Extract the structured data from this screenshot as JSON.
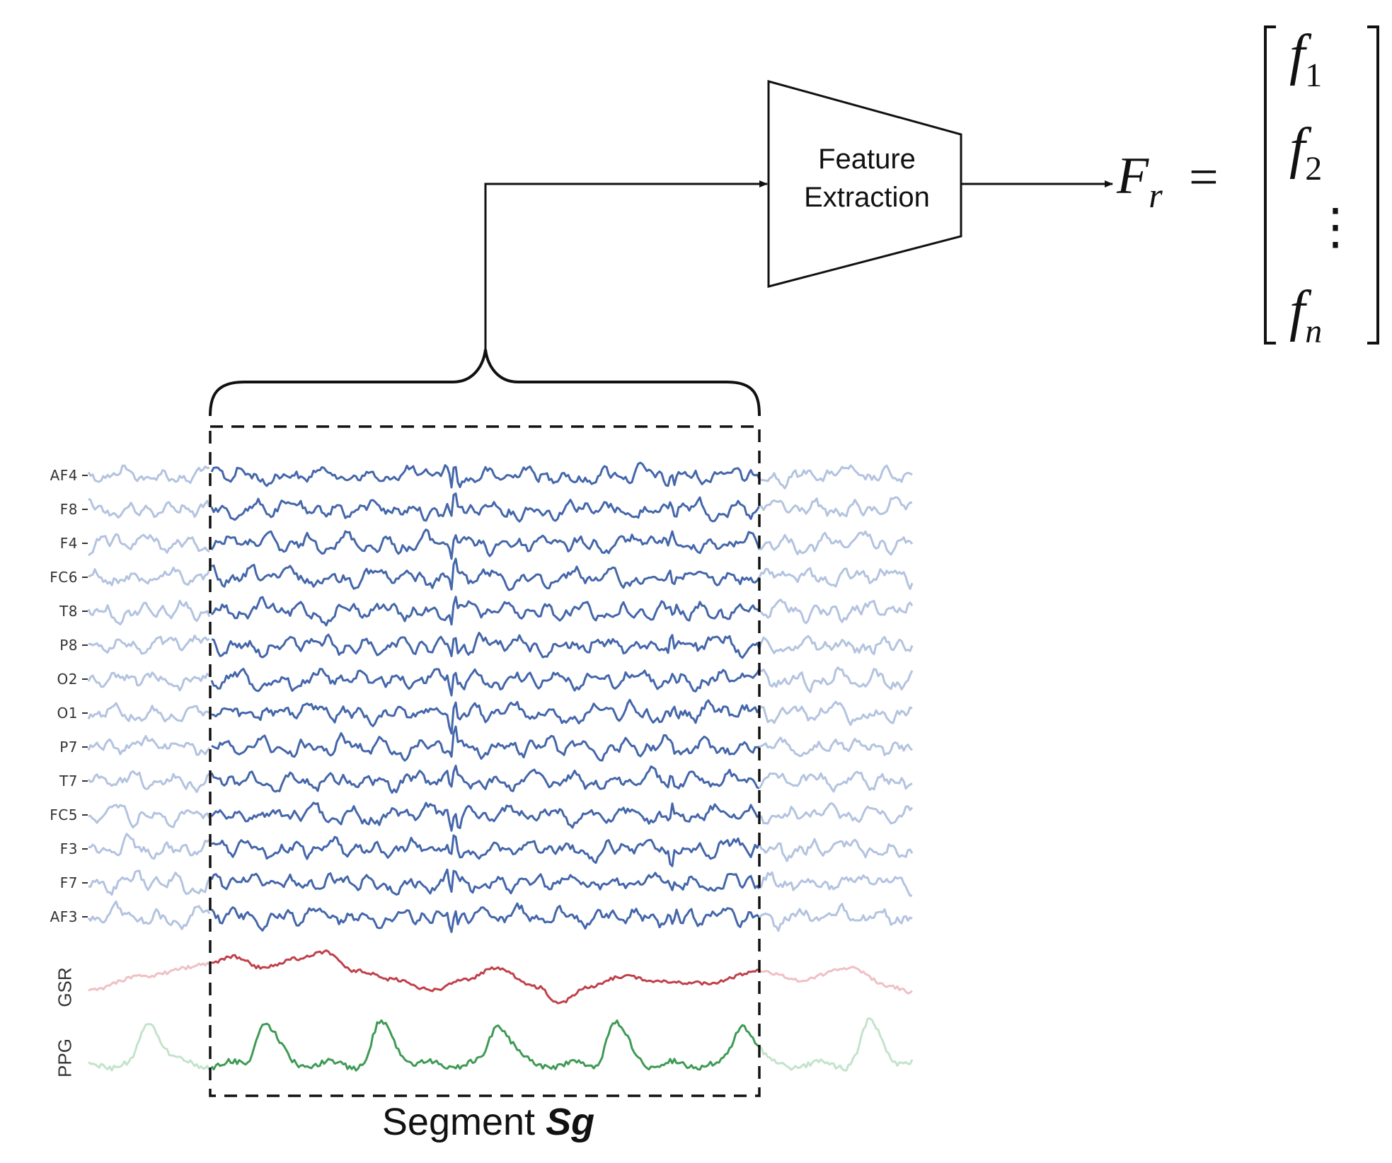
{
  "feature_block": {
    "line1": "Feature",
    "line2": "Extraction"
  },
  "output": {
    "symbol": "F",
    "subscript": "r",
    "equals": "=",
    "vector": [
      {
        "base": "f",
        "sub": "1"
      },
      {
        "base": "f",
        "sub": "2"
      },
      {
        "base": "⋮",
        "sub": ""
      },
      {
        "base": "f",
        "sub": "n"
      }
    ]
  },
  "eeg_channels": [
    "AF4",
    "F8",
    "F4",
    "FC6",
    "T8",
    "P8",
    "O2",
    "O1",
    "P7",
    "T7",
    "FC5",
    "F3",
    "F7",
    "AF3"
  ],
  "physio_channels": [
    "GSR",
    "PPG"
  ],
  "segment": {
    "prefix": "Segment",
    "name": "Sg"
  },
  "colors": {
    "eeg": "#4466aa",
    "eeg_faded": "#b3c3e0",
    "gsr": "#c0404a",
    "gsr_faded": "#efc0c4",
    "ppg": "#3f9a55",
    "ppg_faded": "#c4e3cb",
    "ink": "#111111"
  }
}
